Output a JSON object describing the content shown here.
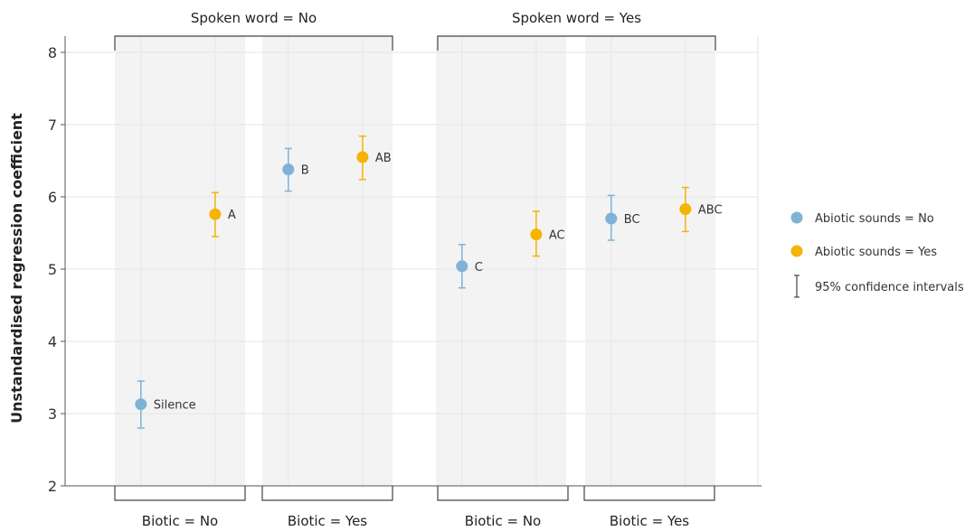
{
  "chart_data": {
    "type": "scatter",
    "ylabel": "Unstandardised regression coefficient",
    "ylim": [
      2,
      8
    ],
    "yticks": [
      2,
      3,
      4,
      5,
      6,
      7,
      8
    ],
    "grid": true,
    "legend_position": "right",
    "top_facets": [
      {
        "label": "Spoken word = No"
      },
      {
        "label": "Spoken word = Yes"
      }
    ],
    "bottom_facets": [
      {
        "label": "Biotic = No"
      },
      {
        "label": "Biotic = Yes"
      },
      {
        "label": "Biotic = No"
      },
      {
        "label": "Biotic = Yes"
      }
    ],
    "series": [
      {
        "name": "Abiotic sounds = No",
        "color": "#7fb2d6"
      },
      {
        "name": "Abiotic sounds = Yes",
        "color": "#f5b400"
      }
    ],
    "points": [
      {
        "label": "Silence",
        "panel": 0,
        "series": 0,
        "value": 3.13,
        "ci": [
          2.8,
          3.45
        ]
      },
      {
        "label": "A",
        "panel": 0,
        "series": 1,
        "value": 5.76,
        "ci": [
          5.45,
          6.06
        ]
      },
      {
        "label": "B",
        "panel": 1,
        "series": 0,
        "value": 6.38,
        "ci": [
          6.08,
          6.67
        ]
      },
      {
        "label": "AB",
        "panel": 1,
        "series": 1,
        "value": 6.55,
        "ci": [
          6.24,
          6.84
        ]
      },
      {
        "label": "C",
        "panel": 2,
        "series": 0,
        "value": 5.04,
        "ci": [
          4.74,
          5.34
        ]
      },
      {
        "label": "AC",
        "panel": 2,
        "series": 1,
        "value": 5.48,
        "ci": [
          5.18,
          5.8
        ]
      },
      {
        "label": "BC",
        "panel": 3,
        "series": 0,
        "value": 5.7,
        "ci": [
          5.4,
          6.02
        ]
      },
      {
        "label": "ABC",
        "panel": 3,
        "series": 1,
        "value": 5.83,
        "ci": [
          5.52,
          6.13
        ]
      }
    ],
    "legend_ci_label": "95% confidence intervals"
  }
}
